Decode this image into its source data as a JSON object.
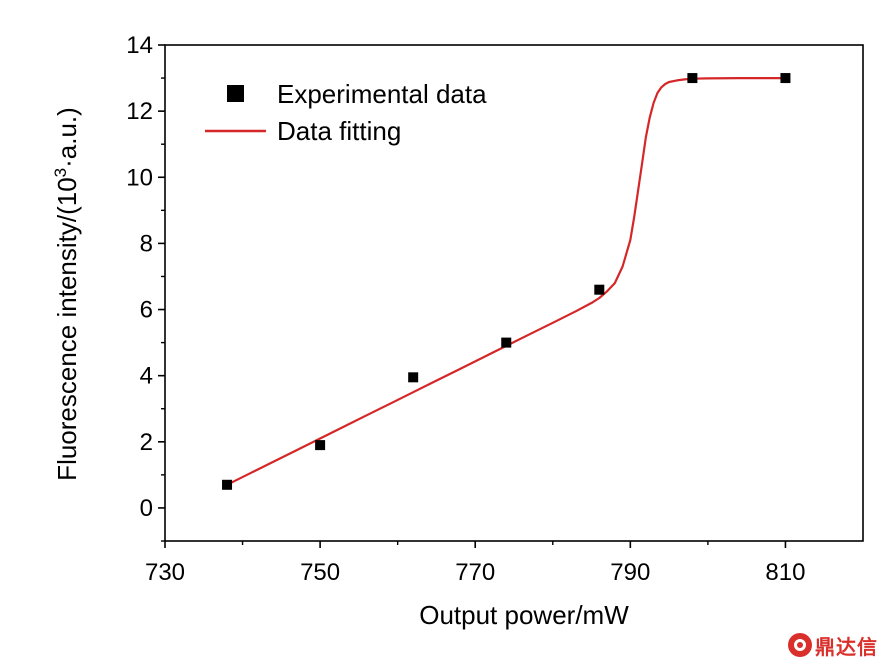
{
  "chart_data": {
    "type": "scatter",
    "title": "",
    "xlabel": "Output power/mW",
    "ylabel_main": "Fluorescence intensity/(10",
    "ylabel_sup": "3",
    "ylabel_tail": "·a.u.)",
    "xlim": [
      730,
      820
    ],
    "ylim": [
      -1,
      14
    ],
    "x_ticks": [
      730,
      750,
      770,
      790,
      810
    ],
    "x_tick_labels": [
      "730",
      "750",
      "770",
      "790",
      "810"
    ],
    "x_minor_ticks": [
      740,
      760,
      780,
      800
    ],
    "y_ticks": [
      0,
      2,
      4,
      6,
      8,
      10,
      12,
      14
    ],
    "y_tick_labels": [
      "0",
      "2",
      "4",
      "6",
      "8",
      "10",
      "12",
      "14"
    ],
    "y_minor_ticks": [
      -1,
      1,
      3,
      5,
      7,
      9,
      11,
      13
    ],
    "grid": false,
    "legend_position": "top-left",
    "series": [
      {
        "name": "Experimental data",
        "kind": "markers",
        "marker": "square",
        "color": "#000000",
        "x": [
          738,
          750,
          762,
          774,
          786,
          798,
          810
        ],
        "y": [
          0.7,
          1.9,
          3.95,
          5.0,
          6.6,
          13.0,
          13.0
        ]
      },
      {
        "name": "Data fitting",
        "kind": "line",
        "color": "#d62728",
        "x": [
          738,
          741,
          744,
          747,
          750,
          753,
          756,
          759,
          762,
          765,
          768,
          771,
          774,
          777,
          780,
          783,
          785,
          786,
          787,
          788,
          789,
          790,
          790.5,
          791,
          791.5,
          792,
          792.5,
          793,
          793.5,
          794,
          794.5,
          795,
          796,
          797,
          798,
          800,
          804,
          810
        ],
        "y": [
          0.7,
          1.05,
          1.4,
          1.75,
          2.1,
          2.45,
          2.8,
          3.15,
          3.5,
          3.85,
          4.2,
          4.55,
          4.9,
          5.25,
          5.6,
          5.95,
          6.2,
          6.35,
          6.55,
          6.8,
          7.3,
          8.1,
          8.8,
          9.6,
          10.4,
          11.2,
          11.8,
          12.25,
          12.55,
          12.72,
          12.82,
          12.88,
          12.93,
          12.96,
          12.98,
          12.99,
          13.0,
          13.0
        ]
      }
    ]
  },
  "watermark": {
    "logo_icon": "dingdaxin-logo-icon",
    "text": "鼎达信",
    "color": "#d9302c"
  }
}
